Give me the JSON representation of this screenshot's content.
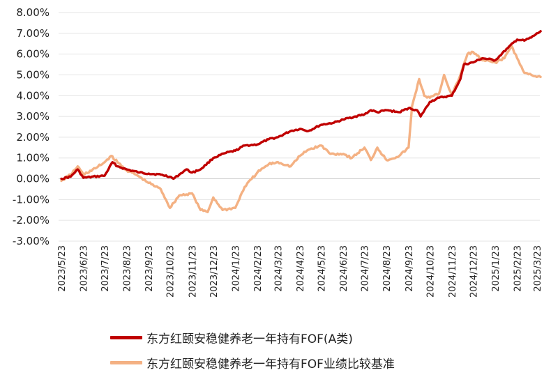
{
  "chart_data": {
    "type": "line",
    "x_ticks": [
      "2023/5/23",
      "2023/6/23",
      "2023/7/23",
      "2023/8/23",
      "2023/9/23",
      "2023/10/23",
      "2023/11/23",
      "2023/12/23",
      "2024/1/23",
      "2024/2/23",
      "2024/3/23",
      "2024/4/23",
      "2024/5/23",
      "2024/6/23",
      "2024/7/23",
      "2024/8/23",
      "2024/9/23",
      "2024/10/23",
      "2024/11/23",
      "2024/12/23",
      "2025/1/23",
      "2025/2/23",
      "2025/3/23"
    ],
    "y_ticks": [
      "8.00%",
      "7.00%",
      "6.00%",
      "5.00%",
      "4.00%",
      "3.00%",
      "2.00%",
      "1.00%",
      "0.00%",
      "-1.00%",
      "-2.00%",
      "-3.00%"
    ],
    "ylim": [
      -3,
      8
    ],
    "ylabel_unit": "%",
    "grid": "horizontal",
    "legend_position": "bottom",
    "series": [
      {
        "name": "东方红颐安稳健养老一年持有FOF(A类)",
        "color": "#c00000",
        "points": [
          [
            "2023/5/23",
            0.0
          ],
          [
            "2023/6/5",
            0.1
          ],
          [
            "2023/6/15",
            0.45
          ],
          [
            "2023/6/23",
            0.05
          ],
          [
            "2023/7/23",
            0.15
          ],
          [
            "2023/8/3",
            0.8
          ],
          [
            "2023/8/10",
            0.6
          ],
          [
            "2023/8/23",
            0.45
          ],
          [
            "2023/9/10",
            0.3
          ],
          [
            "2023/9/23",
            0.25
          ],
          [
            "2023/10/10",
            0.2
          ],
          [
            "2023/10/23",
            0.1
          ],
          [
            "2023/10/28",
            0.0
          ],
          [
            "2023/11/5",
            0.2
          ],
          [
            "2023/11/15",
            0.45
          ],
          [
            "2023/11/23",
            0.3
          ],
          [
            "2023/12/5",
            0.45
          ],
          [
            "2023/12/23",
            1.0
          ],
          [
            "2024/1/10",
            1.25
          ],
          [
            "2024/1/23",
            1.35
          ],
          [
            "2024/2/5",
            1.6
          ],
          [
            "2024/2/23",
            1.65
          ],
          [
            "2024/3/10",
            1.9
          ],
          [
            "2024/3/23",
            2.0
          ],
          [
            "2024/4/10",
            2.3
          ],
          [
            "2024/4/23",
            2.4
          ],
          [
            "2024/5/5",
            2.3
          ],
          [
            "2024/5/23",
            2.6
          ],
          [
            "2024/6/10",
            2.7
          ],
          [
            "2024/6/23",
            2.85
          ],
          [
            "2024/7/10",
            3.0
          ],
          [
            "2024/7/23",
            3.1
          ],
          [
            "2024/8/1",
            3.3
          ],
          [
            "2024/8/10",
            3.2
          ],
          [
            "2024/8/23",
            3.3
          ],
          [
            "2024/9/10",
            3.2
          ],
          [
            "2024/9/23",
            3.4
          ],
          [
            "2024/10/5",
            3.3
          ],
          [
            "2024/10/10",
            3.0
          ],
          [
            "2024/10/23",
            3.7
          ],
          [
            "2024/11/5",
            3.9
          ],
          [
            "2024/11/23",
            4.0
          ],
          [
            "2024/12/5",
            4.8
          ],
          [
            "2024/12/10",
            5.5
          ],
          [
            "2024/12/23",
            5.6
          ],
          [
            "2025/1/5",
            5.8
          ],
          [
            "2025/1/23",
            5.7
          ],
          [
            "2025/2/10",
            6.3
          ],
          [
            "2025/2/23",
            6.7
          ],
          [
            "2025/3/5",
            6.65
          ],
          [
            "2025/3/15",
            6.8
          ],
          [
            "2025/3/28",
            7.1
          ]
        ]
      },
      {
        "name": "东方红颐安稳健养老一年持有FOF业绩比较基准",
        "color": "#f4b183",
        "points": [
          [
            "2023/5/23",
            -0.1
          ],
          [
            "2023/6/5",
            0.2
          ],
          [
            "2023/6/15",
            0.6
          ],
          [
            "2023/6/23",
            0.2
          ],
          [
            "2023/7/10",
            0.5
          ],
          [
            "2023/7/23",
            0.8
          ],
          [
            "2023/8/1",
            1.1
          ],
          [
            "2023/8/10",
            0.8
          ],
          [
            "2023/8/23",
            0.4
          ],
          [
            "2023/9/5",
            0.2
          ],
          [
            "2023/9/23",
            -0.2
          ],
          [
            "2023/10/10",
            -0.5
          ],
          [
            "2023/10/23",
            -1.4
          ],
          [
            "2023/11/5",
            -0.8
          ],
          [
            "2023/11/23",
            -0.7
          ],
          [
            "2023/12/5",
            -1.5
          ],
          [
            "2023/12/15",
            -1.6
          ],
          [
            "2023/12/23",
            -0.9
          ],
          [
            "2024/1/5",
            -1.5
          ],
          [
            "2024/1/23",
            -1.4
          ],
          [
            "2024/2/5",
            -0.4
          ],
          [
            "2024/2/23",
            0.3
          ],
          [
            "2024/3/10",
            0.7
          ],
          [
            "2024/3/23",
            0.8
          ],
          [
            "2024/4/10",
            0.6
          ],
          [
            "2024/4/23",
            1.1
          ],
          [
            "2024/5/5",
            1.4
          ],
          [
            "2024/5/23",
            1.6
          ],
          [
            "2024/6/5",
            1.2
          ],
          [
            "2024/6/23",
            1.2
          ],
          [
            "2024/7/5",
            1.0
          ],
          [
            "2024/7/23",
            1.5
          ],
          [
            "2024/8/1",
            0.9
          ],
          [
            "2024/8/10",
            1.5
          ],
          [
            "2024/8/23",
            0.9
          ],
          [
            "2024/9/10",
            1.1
          ],
          [
            "2024/9/23",
            1.5
          ],
          [
            "2024/9/28",
            3.5
          ],
          [
            "2024/10/8",
            4.8
          ],
          [
            "2024/10/15",
            4.0
          ],
          [
            "2024/10/23",
            3.9
          ],
          [
            "2024/11/5",
            4.1
          ],
          [
            "2024/11/12",
            5.0
          ],
          [
            "2024/11/23",
            4.0
          ],
          [
            "2024/12/5",
            5.0
          ],
          [
            "2024/12/15",
            6.0
          ],
          [
            "2024/12/23",
            6.1
          ],
          [
            "2025/1/5",
            5.7
          ],
          [
            "2025/1/23",
            5.6
          ],
          [
            "2025/2/5",
            5.8
          ],
          [
            "2025/2/15",
            6.4
          ],
          [
            "2025/2/23",
            5.8
          ],
          [
            "2025/3/5",
            5.1
          ],
          [
            "2025/3/15",
            5.0
          ],
          [
            "2025/3/28",
            4.9
          ]
        ]
      }
    ]
  }
}
